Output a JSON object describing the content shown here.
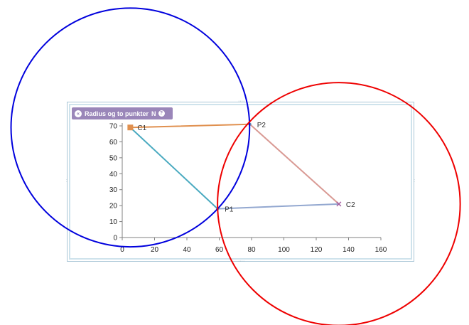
{
  "widget": {
    "title": "Radius og to punkter",
    "title_suffix": "N",
    "collapse_icon": "collapse-circle-icon",
    "help_icon": "question-circle-icon"
  },
  "chart_data": {
    "type": "scatter",
    "title": "",
    "xlabel": "",
    "ylabel": "",
    "xlim": [
      0,
      160
    ],
    "ylim": [
      0,
      70
    ],
    "xticks": [
      0,
      20,
      40,
      60,
      80,
      100,
      120,
      140,
      160
    ],
    "yticks": [
      0,
      10,
      20,
      30,
      40,
      50,
      60,
      70
    ],
    "grid": false,
    "points": [
      {
        "label": "C1",
        "x": 5,
        "y": 69
      },
      {
        "label": "P2",
        "x": 79,
        "y": 71
      },
      {
        "label": "P1",
        "x": 59,
        "y": 18
      },
      {
        "label": "C2",
        "x": 134,
        "y": 21
      }
    ],
    "segments": [
      {
        "from": "C1",
        "to": "P2",
        "color": "#e0904f"
      },
      {
        "from": "C1",
        "to": "P1",
        "color": "#4aaac0"
      },
      {
        "from": "P1",
        "to": "C2",
        "color": "#93a8d0"
      },
      {
        "from": "P2",
        "to": "C2",
        "color": "#d99a94"
      }
    ],
    "circles": [
      {
        "center": "C1",
        "through": "P1",
        "color": "#0000dd"
      },
      {
        "center": "C2",
        "through": "P1",
        "color": "#ee0000"
      }
    ]
  }
}
